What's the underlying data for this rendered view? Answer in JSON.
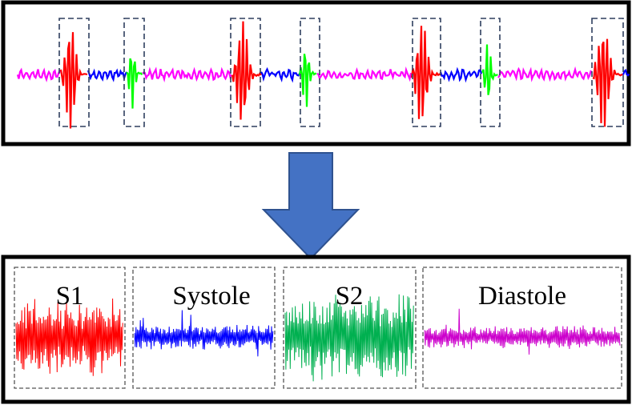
{
  "segments": [
    {
      "label": "S1",
      "color": "#ff0000",
      "kind": "s1"
    },
    {
      "label": "Systole",
      "color": "#0000ff",
      "kind": "systole"
    },
    {
      "label": "S2",
      "color": "#00b050",
      "kind": "s2"
    },
    {
      "label": "Diastole",
      "color": "#cc00cc",
      "kind": "diastole"
    }
  ],
  "signal": {
    "colors": {
      "s1": "#ff0000",
      "systole": "#0000ff",
      "s2": "#00ff00",
      "diastole": "#ff00ff"
    }
  },
  "arrow": {
    "color": "#4472c4",
    "direction": "down"
  }
}
